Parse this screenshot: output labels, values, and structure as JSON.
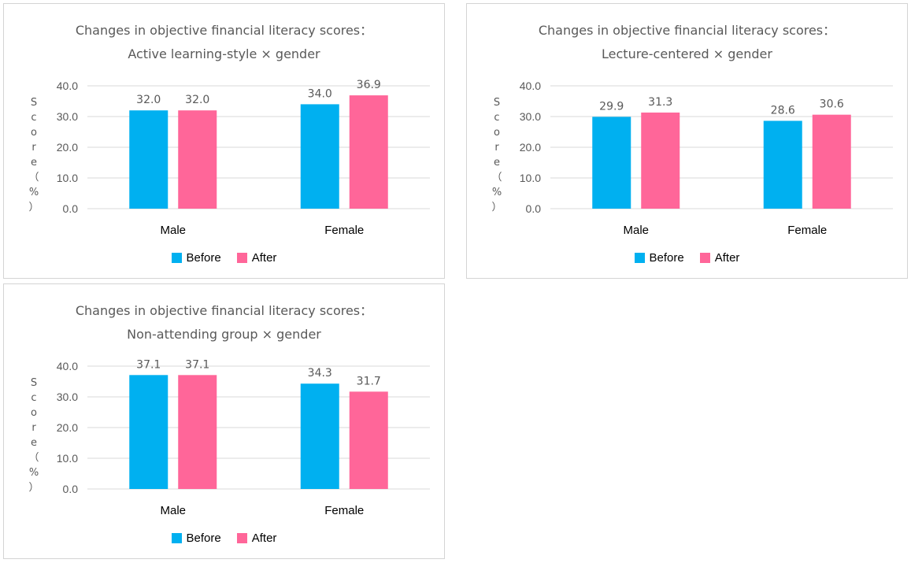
{
  "colors": {
    "before": "#00b0f0",
    "after": "#ff6699",
    "grid": "#d9d9d9",
    "text": "#595959"
  },
  "chart_data": [
    {
      "type": "bar",
      "title_line1": "Changes in objective financial literacy scores：",
      "title_line2": "Active learning-style × gender",
      "ylabel": "Score（%）",
      "ylabel_chars": [
        "S",
        "c",
        "o",
        "r",
        "e",
        "（",
        "%",
        "）"
      ],
      "categories": [
        "Male",
        "Female"
      ],
      "series": [
        {
          "name": "Before",
          "values": [
            32.0,
            34.0
          ],
          "labels": [
            "32.0",
            "34.0"
          ]
        },
        {
          "name": "After",
          "values": [
            32.0,
            36.9
          ],
          "labels": [
            "32.0",
            "36.9"
          ]
        }
      ],
      "yticks": [
        "0.0",
        "10.0",
        "20.0",
        "30.0",
        "40.0"
      ],
      "ylim": [
        0,
        40
      ],
      "grid": true,
      "legend": "bottom"
    },
    {
      "type": "bar",
      "title_line1": "Changes in objective financial literacy scores：",
      "title_line2": "Lecture-centered × gender",
      "ylabel": "Score（%）",
      "ylabel_chars": [
        "S",
        "c",
        "o",
        "r",
        "e",
        "（",
        "%",
        "）"
      ],
      "categories": [
        "Male",
        "Female"
      ],
      "series": [
        {
          "name": "Before",
          "values": [
            29.9,
            28.6
          ],
          "labels": [
            "29.9",
            "28.6"
          ]
        },
        {
          "name": "After",
          "values": [
            31.3,
            30.6
          ],
          "labels": [
            "31.3",
            "30.6"
          ]
        }
      ],
      "yticks": [
        "0.0",
        "10.0",
        "20.0",
        "30.0",
        "40.0"
      ],
      "ylim": [
        0,
        40
      ],
      "grid": true,
      "legend": "bottom"
    },
    {
      "type": "bar",
      "title_line1": "Changes in objective financial literacy scores：",
      "title_line2": "Non-attending group × gender",
      "ylabel": "Score（%）",
      "ylabel_chars": [
        "S",
        "c",
        "o",
        "r",
        "e",
        "（",
        "%",
        "）"
      ],
      "categories": [
        "Male",
        "Female"
      ],
      "series": [
        {
          "name": "Before",
          "values": [
            37.1,
            34.3
          ],
          "labels": [
            "37.1",
            "34.3"
          ]
        },
        {
          "name": "After",
          "values": [
            37.1,
            31.7
          ],
          "labels": [
            "37.1",
            "31.7"
          ]
        }
      ],
      "yticks": [
        "0.0",
        "10.0",
        "20.0",
        "30.0",
        "40.0"
      ],
      "ylim": [
        0,
        40
      ],
      "grid": true,
      "legend": "bottom"
    }
  ]
}
